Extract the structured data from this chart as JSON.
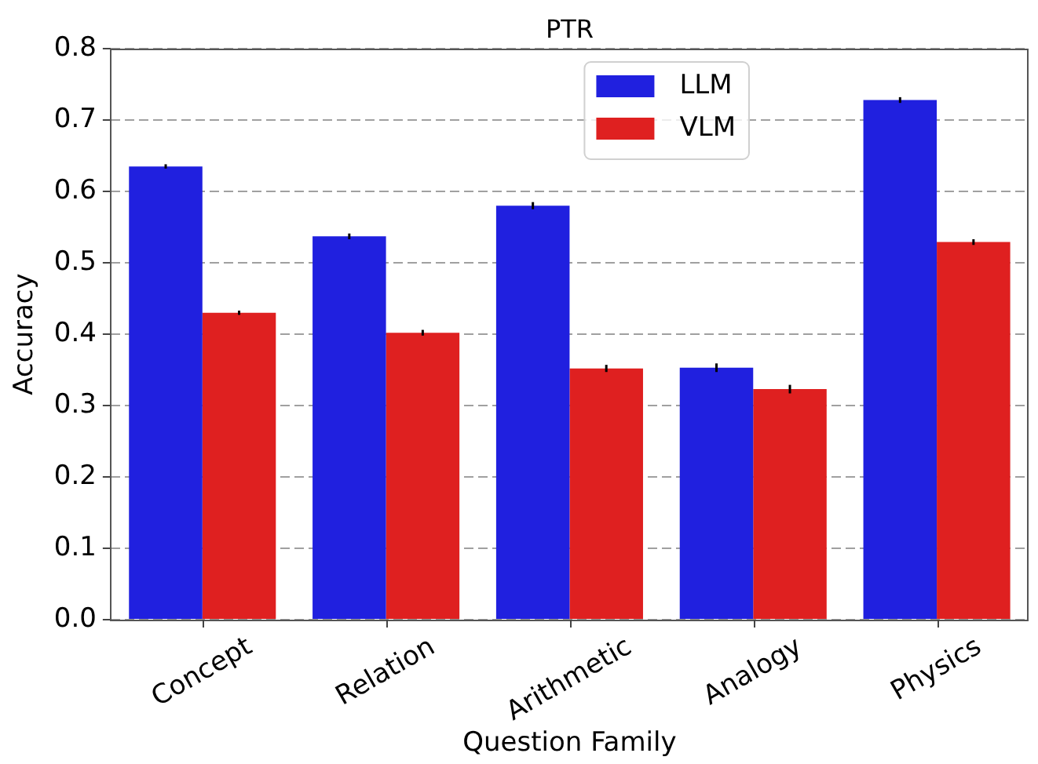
{
  "chart_data": {
    "type": "bar",
    "title": "PTR",
    "xlabel": "Question Family",
    "ylabel": "Accuracy",
    "categories": [
      "Concept",
      "Relation",
      "Arithmetic",
      "Analogy",
      "Physics"
    ],
    "series": [
      {
        "name": "LLM",
        "color": "#2020df",
        "values": [
          0.635,
          0.537,
          0.58,
          0.353,
          0.728
        ],
        "errors": [
          0.003,
          0.004,
          0.005,
          0.006,
          0.004
        ]
      },
      {
        "name": "VLM",
        "color": "#df2020",
        "values": [
          0.43,
          0.402,
          0.352,
          0.323,
          0.529
        ],
        "errors": [
          0.003,
          0.004,
          0.005,
          0.006,
          0.004
        ]
      }
    ],
    "ylim": [
      0,
      0.8
    ],
    "yticks": [
      {
        "value": 0,
        "label": "0.0"
      },
      0.1,
      0.2,
      0.3,
      0.4,
      0.5,
      0.6,
      0.7,
      0.8
    ],
    "grid": "y",
    "legend": "top"
  }
}
